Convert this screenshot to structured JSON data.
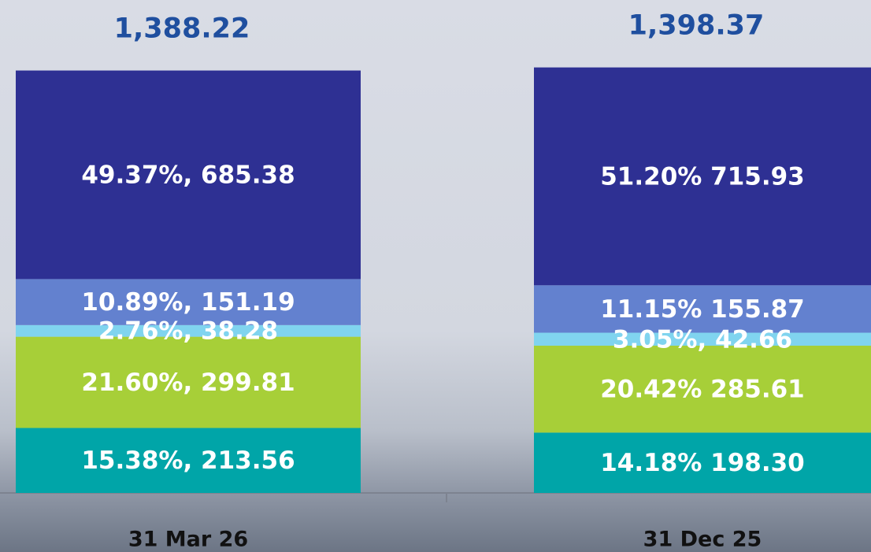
{
  "chart_data": {
    "type": "bar",
    "stacked": true,
    "categories": [
      "31 Mar 26",
      "31 Dec 25"
    ],
    "totals": [
      1388.22,
      1398.37
    ],
    "total_labels": [
      "1,388.22",
      "1,398.37"
    ],
    "ylim": [
      0,
      1400
    ],
    "series": [
      {
        "color": "#00a5a8",
        "values": [
          213.56,
          198.3
        ],
        "value_labels": [
          "15.38%, 213.56",
          "14.18% 198.30"
        ]
      },
      {
        "color": "#a7cf38",
        "values": [
          299.81,
          285.61
        ],
        "value_labels": [
          "21.60%, 299.81",
          "20.42% 285.61"
        ]
      },
      {
        "color": "#80d4ef",
        "values": [
          38.28,
          42.66
        ],
        "value_labels": [
          "2.76%, 38.28",
          "3.05%, 42.66"
        ]
      },
      {
        "color": "#6381cf",
        "values": [
          151.19,
          155.87
        ],
        "value_labels": [
          "10.89%, 151.19",
          "11.15% 155.87"
        ]
      },
      {
        "color": "#2e3093",
        "values": [
          685.38,
          715.93
        ],
        "value_labels": [
          "49.37%, 685.38",
          "51.20% 715.93"
        ]
      }
    ]
  }
}
